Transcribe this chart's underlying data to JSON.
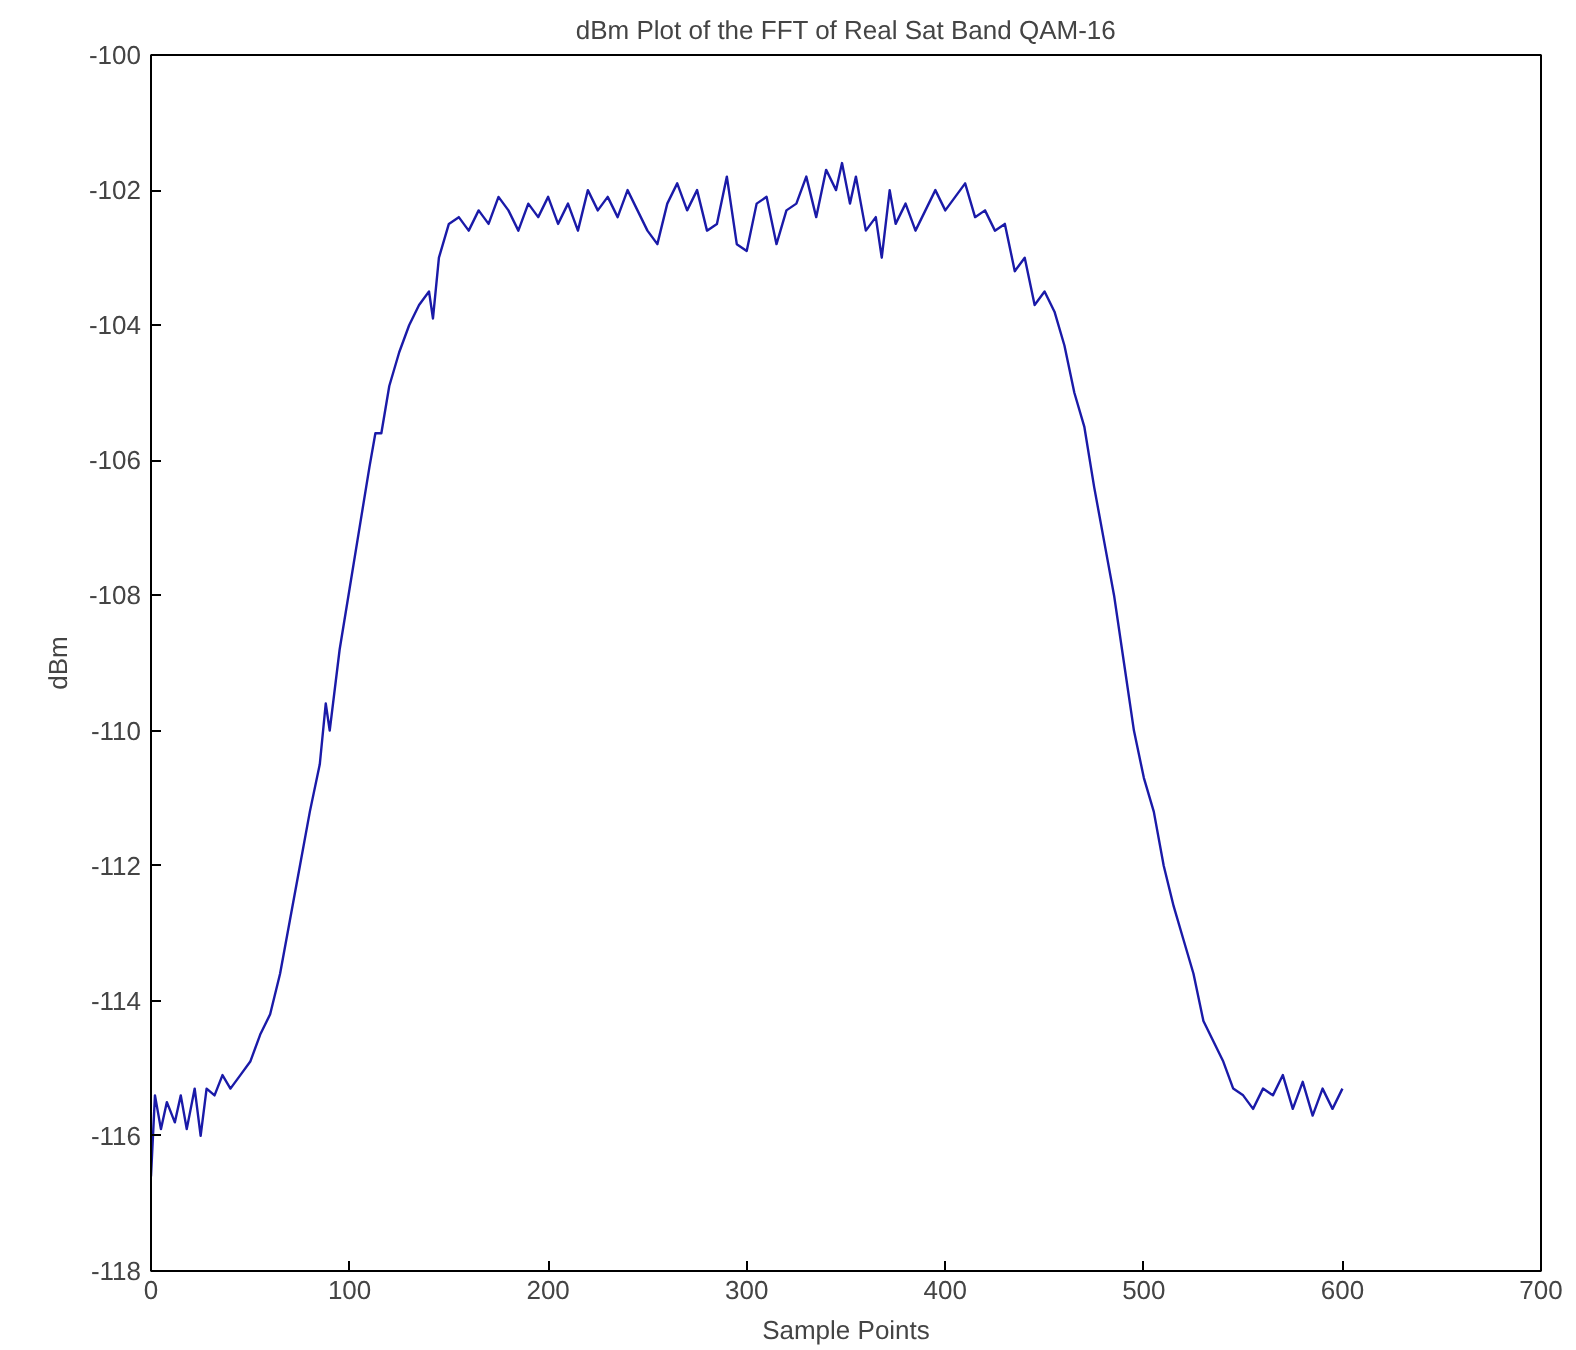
{
  "chart_data": {
    "type": "line",
    "title": "dBm Plot of the FFT of Real Sat Band QAM-16",
    "xlabel": "Sample Points",
    "ylabel": "dBm",
    "xlim": [
      0,
      700
    ],
    "xticks": [
      0,
      100,
      200,
      300,
      400,
      500,
      600,
      700
    ],
    "ylim": [
      -118,
      -100
    ],
    "yticks": [
      -118,
      -116,
      -114,
      -112,
      -110,
      -108,
      -106,
      -104,
      -102,
      -100
    ],
    "grid": false,
    "marker": "none",
    "line_style": "solid",
    "series": [
      {
        "color": "#1a1aa8",
        "x": [
          0,
          2,
          5,
          8,
          12,
          15,
          18,
          22,
          25,
          28,
          32,
          36,
          40,
          45,
          50,
          55,
          60,
          65,
          70,
          75,
          80,
          85,
          88,
          90,
          95,
          100,
          105,
          110,
          113,
          116,
          120,
          125,
          130,
          135,
          140,
          142,
          145,
          150,
          155,
          160,
          165,
          170,
          175,
          180,
          185,
          190,
          195,
          200,
          205,
          210,
          215,
          220,
          225,
          230,
          235,
          240,
          245,
          250,
          255,
          260,
          265,
          270,
          275,
          280,
          285,
          290,
          295,
          300,
          305,
          310,
          315,
          320,
          325,
          330,
          335,
          340,
          345,
          348,
          352,
          355,
          360,
          365,
          368,
          372,
          375,
          380,
          385,
          390,
          395,
          400,
          405,
          410,
          415,
          420,
          425,
          430,
          435,
          440,
          445,
          450,
          455,
          460,
          465,
          470,
          475,
          480,
          485,
          490,
          495,
          500,
          505,
          510,
          515,
          520,
          525,
          530,
          535,
          540,
          545,
          550,
          555,
          560,
          565,
          570,
          575,
          580,
          585,
          590,
          595,
          600
        ],
        "values": [
          -116.6,
          -115.4,
          -115.9,
          -115.5,
          -115.8,
          -115.4,
          -115.9,
          -115.3,
          -116.0,
          -115.3,
          -115.4,
          -115.1,
          -115.3,
          -115.1,
          -114.9,
          -114.5,
          -114.2,
          -113.6,
          -112.8,
          -112.0,
          -111.2,
          -110.5,
          -109.6,
          -110.0,
          -108.8,
          -107.9,
          -107.0,
          -106.1,
          -105.6,
          -105.6,
          -104.9,
          -104.4,
          -104.0,
          -103.7,
          -103.5,
          -103.9,
          -103.0,
          -102.5,
          -102.4,
          -102.6,
          -102.3,
          -102.5,
          -102.1,
          -102.3,
          -102.6,
          -102.2,
          -102.4,
          -102.1,
          -102.5,
          -102.2,
          -102.6,
          -102.0,
          -102.3,
          -102.1,
          -102.4,
          -102.0,
          -102.3,
          -102.6,
          -102.8,
          -102.2,
          -101.9,
          -102.3,
          -102.0,
          -102.6,
          -102.5,
          -101.8,
          -102.8,
          -102.9,
          -102.2,
          -102.1,
          -102.8,
          -102.3,
          -102.2,
          -101.8,
          -102.4,
          -101.7,
          -102.0,
          -101.6,
          -102.2,
          -101.8,
          -102.6,
          -102.4,
          -103.0,
          -102.0,
          -102.5,
          -102.2,
          -102.6,
          -102.3,
          -102.0,
          -102.3,
          -102.1,
          -101.9,
          -102.4,
          -102.3,
          -102.6,
          -102.5,
          -103.2,
          -103.0,
          -103.7,
          -103.5,
          -103.8,
          -104.3,
          -105.0,
          -105.5,
          -106.4,
          -107.2,
          -108.0,
          -109.0,
          -110.0,
          -110.7,
          -111.2,
          -112.0,
          -112.6,
          -113.1,
          -113.6,
          -114.3,
          -114.6,
          -114.9,
          -115.3,
          -115.4,
          -115.6,
          -115.3,
          -115.4,
          -115.1,
          -115.6,
          -115.2,
          -115.7,
          -115.3,
          -115.6,
          -115.3
        ]
      }
    ]
  }
}
